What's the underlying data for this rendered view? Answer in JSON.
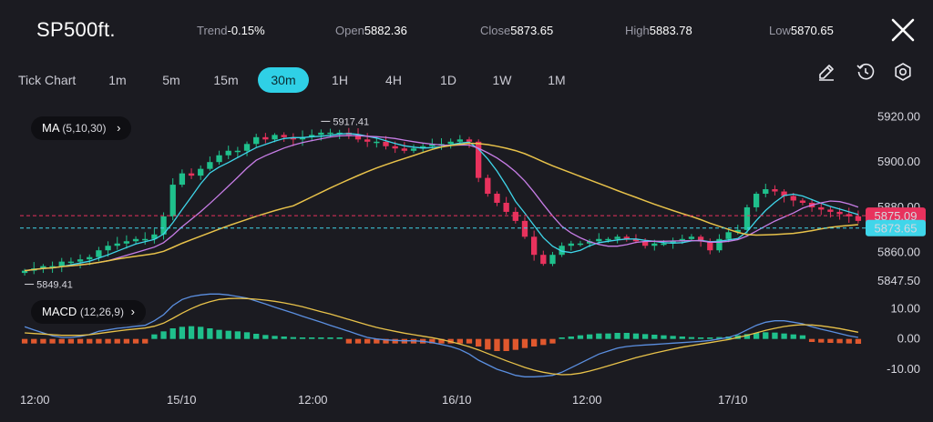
{
  "header": {
    "symbol": "SP500ft.",
    "trend": {
      "label": "Trend",
      "value": "-0.15%"
    },
    "open": {
      "label": "Open",
      "value": "5882.36"
    },
    "close": {
      "label": "Close",
      "value": "5873.65"
    },
    "high": {
      "label": "High",
      "value": "5883.78"
    },
    "low": {
      "label": "Low",
      "value": "5870.65"
    }
  },
  "timeframes": [
    {
      "label": "Tick Chart"
    },
    {
      "label": "1m"
    },
    {
      "label": "5m"
    },
    {
      "label": "15m"
    },
    {
      "label": "30m",
      "active": true
    },
    {
      "label": "1H"
    },
    {
      "label": "4H"
    },
    {
      "label": "1D"
    },
    {
      "label": "1W"
    },
    {
      "label": "1M"
    }
  ],
  "tools": [
    "pencil-icon",
    "history-icon",
    "settings-icon"
  ],
  "indicators": {
    "ma": {
      "name": "MA",
      "params": "(5,10,30)"
    },
    "macd": {
      "name": "MACD",
      "params": "(12,26,9)"
    }
  },
  "colors": {
    "up": "#1fc08c",
    "down": "#e8325d",
    "ma5": "#3fd6ea",
    "ma10": "#c77de6",
    "ma30": "#e8c24a",
    "accent": "#2fd0e6",
    "bid_badge": "#e8325d",
    "ask_badge": "#3fd6ea"
  },
  "chart_data": {
    "type": "candlestick",
    "x_labels": [
      "12:00",
      "15/10",
      "12:00",
      "16/10",
      "12:00",
      "17/10"
    ],
    "price_axis": {
      "ticks": [
        "5920.00",
        "5900.00",
        "5880.00",
        "5860.00",
        "5847.50"
      ],
      "tick_values": [
        5920,
        5900,
        5880,
        5860,
        5847.5
      ],
      "range": [
        5843,
        5925
      ]
    },
    "macd_axis": {
      "ticks": [
        "10.00",
        "0.00",
        "-10.00"
      ],
      "tick_values": [
        10,
        0,
        -10
      ],
      "range": [
        -13,
        14
      ]
    },
    "annotations": {
      "high": "5917.41",
      "low": "5849.41"
    },
    "price_tags": [
      {
        "label": "5875.09",
        "value": 5875.09,
        "role": "bid"
      },
      {
        "label": "5873.65",
        "value": 5873.65,
        "role": "ask"
      }
    ],
    "closes": [
      5852,
      5853,
      5854,
      5854,
      5856,
      5856,
      5857,
      5858,
      5861,
      5863,
      5864,
      5865,
      5866,
      5866,
      5868,
      5876,
      5890,
      5895,
      5894,
      5897,
      5900,
      5903,
      5905,
      5905,
      5908,
      5911,
      5910,
      5912,
      5911,
      5910,
      5911,
      5912,
      5913,
      5913,
      5913,
      5912,
      5910,
      5909,
      5909,
      5907,
      5906,
      5905,
      5906,
      5907,
      5908,
      5908,
      5909,
      5910,
      5909,
      5893,
      5886,
      5882,
      5878,
      5874,
      5867,
      5859,
      5855,
      5859,
      5863,
      5864,
      5864,
      5865,
      5866,
      5866,
      5867,
      5866,
      5865,
      5863,
      5864,
      5864,
      5865,
      5866,
      5867,
      5865,
      5861,
      5866,
      5869,
      5870,
      5880,
      5886,
      5888,
      5887,
      5885,
      5883,
      5882,
      5880,
      5879,
      5878,
      5877,
      5876,
      5874
    ],
    "macd_hist": [
      -1.5,
      -1.5,
      -1.5,
      -1.5,
      -1.5,
      -1.5,
      -1.5,
      -1.5,
      -1.5,
      -1.5,
      -1.5,
      -1.5,
      -1.5,
      -1.5,
      1.5,
      2.5,
      3.5,
      4,
      4.2,
      4,
      3.5,
      3,
      2.7,
      2.5,
      2.2,
      1.7,
      1.3,
      1,
      0.8,
      0.6,
      0.5,
      0.5,
      0.5,
      0.5,
      0.5,
      -1.5,
      -1.5,
      -1.5,
      -1.5,
      -1.5,
      -1.5,
      -1.5,
      -1.5,
      -1.5,
      -1.5,
      -1.5,
      -1.5,
      -1.5,
      -1.5,
      -2.5,
      -3.5,
      -4,
      -4,
      -3.6,
      -3,
      -2.5,
      -2,
      -1.5,
      0.5,
      0.8,
      1.2,
      1.5,
      1.8,
      1.8,
      2,
      2,
      1.8,
      1.6,
      1.4,
      1.2,
      1,
      0.8,
      0.6,
      0.5,
      0.5,
      0.6,
      0.8,
      1.2,
      1.6,
      2,
      2.2,
      2.1,
      1.8,
      1.5,
      1.2,
      -1,
      -1.2,
      -1.3,
      -1.4,
      -1.5,
      -1.6
    ],
    "macd_line": [
      4,
      3,
      2,
      1,
      0.5,
      0.5,
      0.8,
      1.5,
      2.5,
      3,
      3.5,
      3.8,
      4.2,
      4.5,
      6,
      8,
      11,
      13,
      14,
      14.5,
      14.8,
      14.8,
      14.5,
      14,
      13.5,
      12.5,
      11.5,
      10.5,
      9.5,
      8.5,
      7.5,
      6.5,
      5.5,
      4.5,
      3.5,
      2.5,
      1.5,
      0.5,
      0,
      -0.3,
      -0.5,
      -0.6,
      -0.6,
      -0.8,
      -1.2,
      -1.8,
      -2.5,
      -3.5,
      -5,
      -7,
      -8.5,
      -10,
      -11,
      -12,
      -12.5,
      -12.5,
      -12.3,
      -12,
      -11,
      -9.5,
      -8,
      -6.5,
      -5,
      -4,
      -3,
      -2.5,
      -2.2,
      -2,
      -1.8,
      -1.6,
      -1.4,
      -1.2,
      -1,
      -0.8,
      -0.5,
      0,
      0.5,
      1.5,
      3,
      4.5,
      5.5,
      6,
      6,
      5.5,
      5,
      4,
      3.2,
      2.5,
      1.8,
      1,
      0.5
    ],
    "signal_line": [
      2,
      1.8,
      1.6,
      1.4,
      1.2,
      1.2,
      1.2,
      1.4,
      1.8,
      2.2,
      2.6,
      3,
      3.3,
      3.6,
      4.2,
      5.2,
      6.8,
      8.5,
      10,
      11.3,
      12.3,
      13,
      13.3,
      13.4,
      13.3,
      13.1,
      12.8,
      12.4,
      11.9,
      11.3,
      10.6,
      9.8,
      9,
      8.2,
      7.3,
      6.4,
      5.5,
      4.6,
      3.8,
      3.1,
      2.5,
      1.9,
      1.4,
      0.9,
      0.4,
      -0.2,
      -0.9,
      -1.7,
      -2.6,
      -3.6,
      -4.8,
      -6,
      -7.2,
      -8.3,
      -9.4,
      -10.3,
      -11,
      -11.5,
      -11.8,
      -11.7,
      -11.3,
      -10.6,
      -9.8,
      -8.9,
      -8,
      -7.1,
      -6.2,
      -5.4,
      -4.7,
      -4,
      -3.3,
      -2.7,
      -2.2,
      -1.7,
      -1.2,
      -0.7,
      -0.2,
      0.5,
      1.2,
      2,
      2.8,
      3.5,
      4.1,
      4.5,
      4.7,
      4.6,
      4.3,
      3.9,
      3.4,
      2.8,
      2.2
    ]
  }
}
